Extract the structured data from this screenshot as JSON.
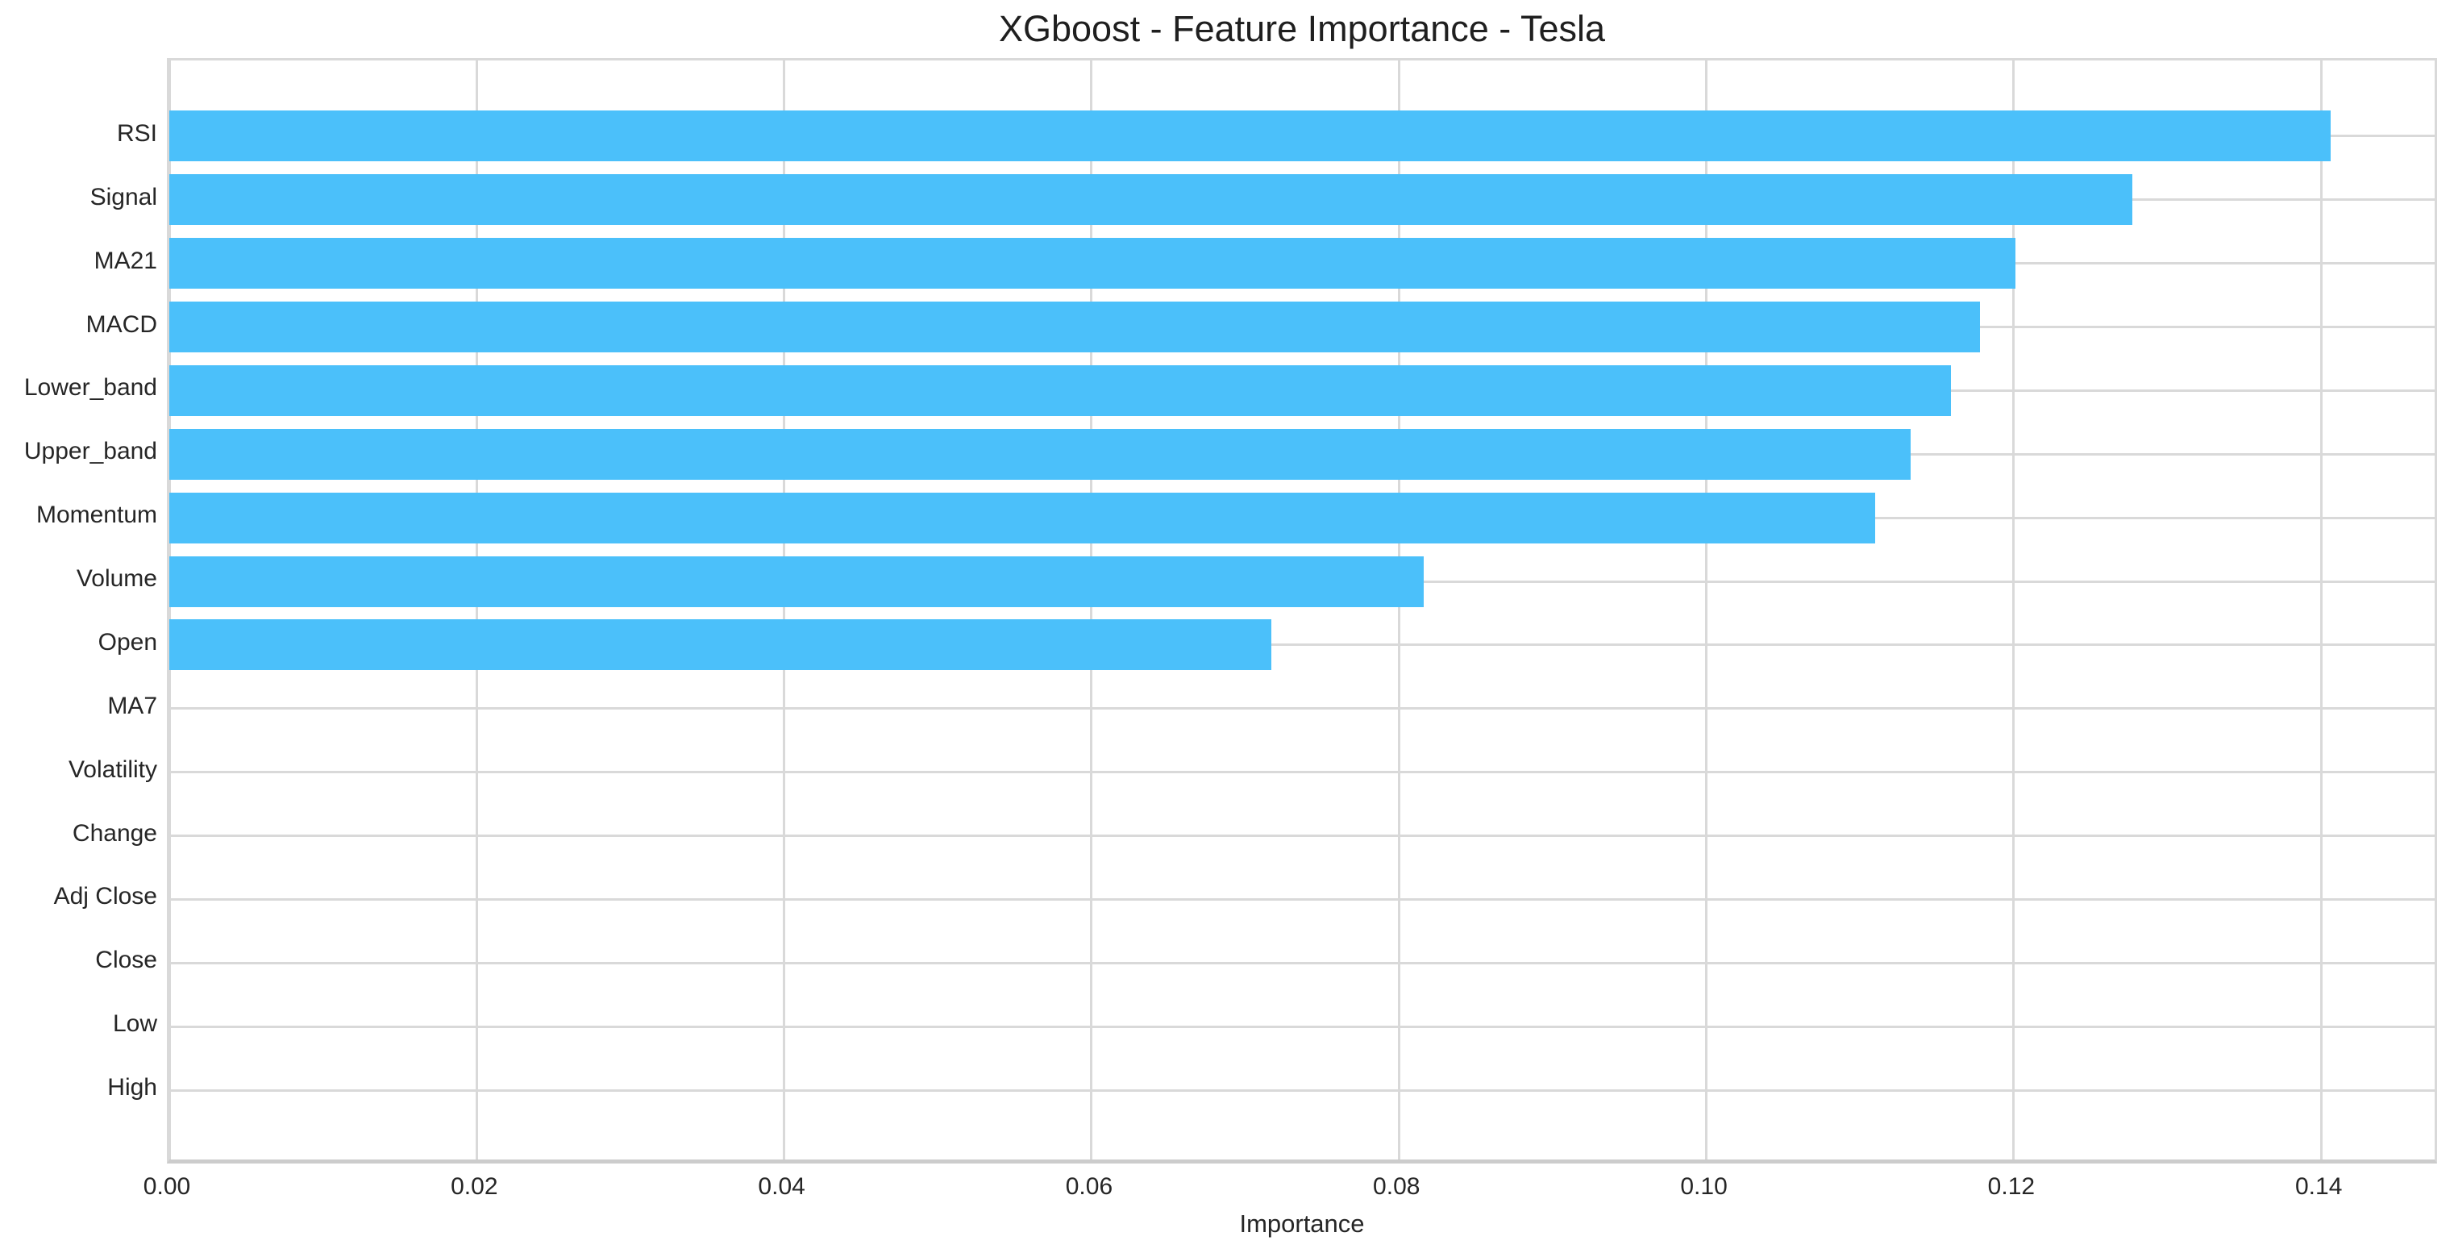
{
  "chart_data": {
    "type": "bar",
    "orientation": "horizontal",
    "title": "XGboost - Feature Importance - Tesla",
    "xlabel": "Importance",
    "ylabel": "",
    "categories": [
      "RSI",
      "Signal",
      "MA21",
      "MACD",
      "Lower_band",
      "Upper_band",
      "Momentum",
      "Volume",
      "Open",
      "MA7",
      "Volatility",
      "Change",
      "Adj Close",
      "Close",
      "Low",
      "High"
    ],
    "values": [
      0.1406,
      0.1277,
      0.1201,
      0.1178,
      0.1159,
      0.1133,
      0.111,
      0.0816,
      0.0717,
      0.0,
      0.0,
      0.0,
      0.0,
      0.0,
      0.0,
      0.0
    ],
    "xlim": [
      0,
      0.1477
    ],
    "xticks": [
      0.0,
      0.02,
      0.04,
      0.06,
      0.08,
      0.1,
      0.12,
      0.14
    ],
    "xtick_labels": [
      "0.00",
      "0.02",
      "0.04",
      "0.06",
      "0.08",
      "0.10",
      "0.12",
      "0.14"
    ],
    "grid": true,
    "legend": false,
    "bar_color": "#4bc0fa",
    "grid_color": "#d9d9d9",
    "text_color": "#262626"
  }
}
